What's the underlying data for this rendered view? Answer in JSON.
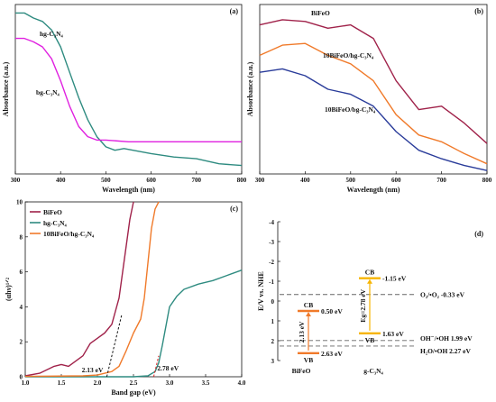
{
  "chart_data": [
    {
      "id": "a",
      "type": "line",
      "panel_label": "(a)",
      "xlabel": "Wavelength (nm)",
      "ylabel": "Absorbance (a.u.)",
      "xlim": [
        300,
        800
      ],
      "xticks": [
        "300",
        "400",
        "500",
        "600",
        "700",
        "800"
      ],
      "series": [
        {
          "name": "hg-C₃N₄",
          "color": "#2e8b80",
          "x": [
            300,
            320,
            340,
            360,
            380,
            400,
            420,
            440,
            460,
            480,
            500,
            520,
            540,
            560,
            600,
            650,
            700,
            750,
            800
          ],
          "y": [
            0.95,
            0.95,
            0.92,
            0.9,
            0.85,
            0.75,
            0.6,
            0.45,
            0.32,
            0.22,
            0.16,
            0.14,
            0.15,
            0.14,
            0.12,
            0.1,
            0.09,
            0.06,
            0.05
          ]
        },
        {
          "name": "bg-C₃N₄",
          "color": "#e020e0",
          "x": [
            300,
            320,
            340,
            360,
            380,
            400,
            420,
            440,
            460,
            480,
            500,
            550,
            600,
            650,
            700,
            750,
            800
          ],
          "y": [
            0.8,
            0.8,
            0.78,
            0.75,
            0.68,
            0.55,
            0.4,
            0.28,
            0.22,
            0.2,
            0.2,
            0.19,
            0.19,
            0.19,
            0.19,
            0.19,
            0.19
          ]
        }
      ]
    },
    {
      "id": "b",
      "type": "line",
      "panel_label": "(b)",
      "xlabel": "Wavelength (nm)",
      "ylabel": "Absorbance (a.u.)",
      "xlim": [
        300,
        800
      ],
      "xticks": [
        "300",
        "400",
        "500",
        "600",
        "700",
        "800"
      ],
      "series": [
        {
          "name": "BiFeO",
          "color": "#a0224a",
          "x": [
            300,
            350,
            400,
            450,
            500,
            550,
            600,
            650,
            700,
            750,
            800
          ],
          "y": [
            0.88,
            0.91,
            0.9,
            0.86,
            0.88,
            0.8,
            0.55,
            0.38,
            0.4,
            0.3,
            0.18
          ]
        },
        {
          "name": "10BiFeO/hg-C₃N₄",
          "color": "#f07a2a",
          "x": [
            300,
            350,
            400,
            450,
            500,
            550,
            600,
            650,
            700,
            750,
            800
          ],
          "y": [
            0.7,
            0.76,
            0.77,
            0.7,
            0.65,
            0.55,
            0.35,
            0.23,
            0.19,
            0.12,
            0.06
          ]
        },
        {
          "name": "10BiFeO/bg-C₃N₄",
          "color": "#2a3c9a",
          "x": [
            300,
            350,
            400,
            450,
            500,
            550,
            600,
            650,
            700,
            750,
            800
          ],
          "y": [
            0.6,
            0.62,
            0.58,
            0.5,
            0.47,
            0.4,
            0.25,
            0.14,
            0.09,
            0.05,
            0.02
          ]
        }
      ]
    },
    {
      "id": "c",
      "type": "line",
      "panel_label": "(c)",
      "xlabel": "Band gap (eV)",
      "ylabel": "(αhν)¹ᐟ²",
      "xlim": [
        1.0,
        4.0
      ],
      "ylim": [
        0,
        10
      ],
      "xticks": [
        "1.0",
        "1.5",
        "2.0",
        "2.5",
        "3.0",
        "3.5",
        "4.0"
      ],
      "yticks": [
        "0",
        "2",
        "4",
        "6",
        "8",
        "10"
      ],
      "annotations": [
        {
          "text": "2.13 eV",
          "x": 2.13,
          "color": "#111111"
        },
        {
          "text": "2.78 eV",
          "x": 2.78,
          "color": "#e02020"
        }
      ],
      "series": [
        {
          "name": "BiFeO",
          "color": "#a0224a",
          "x": [
            1.0,
            1.2,
            1.4,
            1.5,
            1.6,
            1.8,
            1.9,
            2.0,
            2.1,
            2.2,
            2.3,
            2.4,
            2.45,
            2.5
          ],
          "y": [
            0.05,
            0.2,
            0.6,
            0.7,
            0.6,
            1.2,
            1.9,
            2.2,
            2.5,
            3.0,
            4.5,
            7.5,
            9.0,
            10.0
          ]
        },
        {
          "name": "hg-C₃N₄",
          "color": "#2e8b80",
          "x": [
            1.0,
            2.0,
            2.5,
            2.7,
            2.8,
            2.85,
            2.9,
            3.0,
            3.1,
            3.2,
            3.4,
            3.6,
            3.8,
            4.0
          ],
          "y": [
            0,
            0,
            0,
            0.05,
            0.3,
            0.8,
            1.8,
            4.0,
            4.6,
            5.0,
            5.3,
            5.5,
            5.8,
            6.1
          ]
        },
        {
          "name": "10BiFeO/hg-C₃N₄",
          "color": "#f07a2a",
          "x": [
            1.0,
            1.8,
            2.0,
            2.2,
            2.3,
            2.4,
            2.5,
            2.6,
            2.65,
            2.7,
            2.75,
            2.8,
            2.85
          ],
          "y": [
            0.02,
            0.05,
            0.1,
            0.3,
            0.6,
            1.5,
            2.5,
            3.3,
            4.5,
            6.5,
            8.5,
            9.6,
            10.0
          ]
        }
      ]
    },
    {
      "id": "d",
      "type": "diagram",
      "panel_label": "(d)",
      "ylabel": "E/V vs. NHE",
      "ylim": [
        -4,
        3
      ],
      "yticks": [
        "-4",
        "-3",
        "-2",
        "-1",
        "0",
        "1",
        "2",
        "3"
      ],
      "references": [
        {
          "text": "O₂/•O₂  -0.33 eV",
          "value": -0.33
        },
        {
          "text": "OH⁻/•OH 1.99 eV",
          "value": 1.99
        },
        {
          "text": "H₂O/•OH 2.27 eV",
          "value": 2.27
        }
      ],
      "materials": [
        {
          "name": "BiFeO",
          "color": "#f07a2a",
          "cb": 0.5,
          "vb": 2.63,
          "cb_label": "CB",
          "vb_label": "VB",
          "cb_text": "0.50 eV",
          "vb_text": "2.63 eV",
          "gap_text": "2.13 eV"
        },
        {
          "name": "g-C₃N₄",
          "color": "#f7b500",
          "cb": -1.15,
          "vb": 1.63,
          "cb_label": "CB",
          "vb_label": "VB",
          "cb_text": "-1.15 eV",
          "vb_text": "1.63 eV",
          "gap_text": "Eg=2.78 eV"
        }
      ]
    }
  ]
}
